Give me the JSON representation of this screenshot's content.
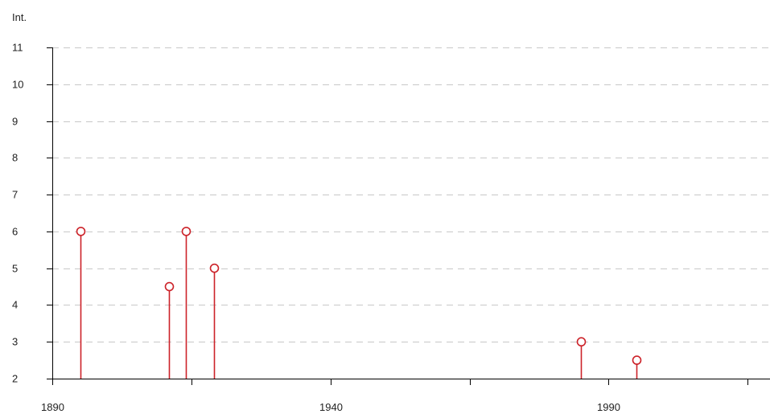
{
  "chart_data": {
    "type": "stem",
    "ylabel": "Int.",
    "xlim": [
      1890,
      2019
    ],
    "ylim": [
      2,
      11
    ],
    "x_ticks": [
      1890,
      1915,
      1940,
      1965,
      1990,
      2015
    ],
    "x_tick_labels": [
      "1890",
      "",
      "1940",
      "",
      "1990",
      ""
    ],
    "y_ticks": [
      2,
      3,
      4,
      5,
      6,
      7,
      8,
      9,
      10,
      11
    ],
    "y_tick_labels": [
      "2",
      "3",
      "4",
      "5",
      "6",
      "7",
      "8",
      "9",
      "10",
      "11"
    ],
    "grid": "horizontal dashed",
    "series": [
      {
        "x": [
          1895,
          1911,
          1914,
          1919,
          1985,
          1995
        ],
        "y": [
          6,
          4.5,
          6,
          5,
          3,
          2.5
        ]
      }
    ]
  },
  "colors": {
    "stem": "#cc2229",
    "marker_fill": "#ffffff",
    "axis": "#000000",
    "grid": "#c8c8c8",
    "text": "#222222"
  }
}
